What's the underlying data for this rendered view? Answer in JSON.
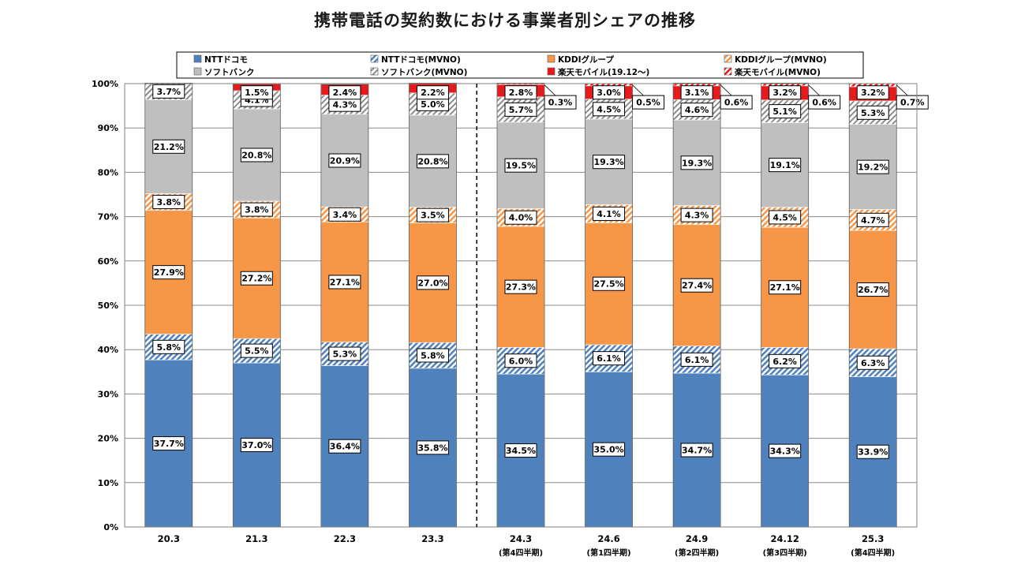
{
  "chart_data": {
    "type": "bar",
    "stacked": true,
    "title": "携帯電話の契約数における事業者別シェアの推移",
    "xlabel": "",
    "ylabel": "",
    "ylim": [
      0,
      100
    ],
    "y_ticks": [
      "0%",
      "10%",
      "20%",
      "30%",
      "40%",
      "50%",
      "60%",
      "70%",
      "80%",
      "90%",
      "100%"
    ],
    "grid": true,
    "legend_position": "top",
    "divider_after_category": "23.3",
    "categories": [
      "20.3",
      "21.3",
      "22.3",
      "23.3",
      "24.3",
      "24.6",
      "24.9",
      "24.12",
      "25.3"
    ],
    "category_sublabels": [
      "",
      "",
      "",
      "",
      "(第4四半期)",
      "(第1四半期)",
      "(第2四半期)",
      "(第3四半期)",
      "(第4四半期)"
    ],
    "series": [
      {
        "name": "NTTドコモ",
        "color": "#4f81bd",
        "pattern": "solid",
        "values": [
          37.7,
          37.0,
          36.4,
          35.8,
          34.5,
          35.0,
          34.7,
          34.3,
          33.9
        ],
        "labels": [
          "37.7%",
          "37.0%",
          "36.4%",
          "35.8%",
          "34.5%",
          "35.0%",
          "34.7%",
          "34.3%",
          "33.9%"
        ]
      },
      {
        "name": "NTTドコモ(MVNO)",
        "color": "#4f81bd",
        "pattern": "hatch",
        "values": [
          5.8,
          5.5,
          5.3,
          5.8,
          6.0,
          6.1,
          6.1,
          6.2,
          6.3
        ],
        "labels": [
          "5.8%",
          "5.5%",
          "5.3%",
          "5.8%",
          "6.0%",
          "6.1%",
          "6.1%",
          "6.2%",
          "6.3%"
        ]
      },
      {
        "name": "KDDIグループ",
        "color": "#f79646",
        "pattern": "solid",
        "values": [
          27.9,
          27.2,
          27.1,
          27.0,
          27.3,
          27.5,
          27.4,
          27.1,
          26.7
        ],
        "labels": [
          "27.9%",
          "27.2%",
          "27.1%",
          "27.0%",
          "27.3%",
          "27.5%",
          "27.4%",
          "27.1%",
          "26.7%"
        ]
      },
      {
        "name": "KDDIグループ(MVNO)",
        "color": "#f79646",
        "pattern": "hatch",
        "values": [
          3.8,
          3.8,
          3.4,
          3.5,
          4.0,
          4.1,
          4.3,
          4.5,
          4.7
        ],
        "labels": [
          "3.8%",
          "3.8%",
          "3.4%",
          "3.5%",
          "4.0%",
          "4.1%",
          "4.3%",
          "4.5%",
          "4.7%"
        ]
      },
      {
        "name": "ソフトバンク",
        "color": "#bfbfbf",
        "pattern": "solid",
        "values": [
          21.2,
          20.8,
          20.9,
          20.8,
          19.5,
          19.3,
          19.3,
          19.1,
          19.2
        ],
        "labels": [
          "21.2%",
          "20.8%",
          "20.9%",
          "20.8%",
          "19.5%",
          "19.3%",
          "19.3%",
          "19.1%",
          "19.2%"
        ]
      },
      {
        "name": "ソフトバンク(MVNO)",
        "color": "#a6a6a6",
        "pattern": "hatch",
        "values": [
          3.7,
          4.1,
          4.3,
          5.0,
          5.7,
          4.5,
          4.6,
          5.1,
          5.3
        ],
        "labels": [
          "3.7%",
          "4.1%",
          "4.3%",
          "5.0%",
          "5.7%",
          "4.5%",
          "4.6%",
          "5.1%",
          "5.3%"
        ]
      },
      {
        "name": "楽天モバイル(19.12～)",
        "color": "#e41a1c",
        "pattern": "solid",
        "values": [
          0,
          1.5,
          2.4,
          2.2,
          2.8,
          3.0,
          3.1,
          3.2,
          3.2
        ],
        "labels": [
          "",
          "1.5%",
          "2.4%",
          "2.2%",
          "2.8%",
          "3.0%",
          "3.1%",
          "3.2%",
          "3.2%"
        ]
      },
      {
        "name": "楽天モバイル(MVNO)",
        "color": "#e41a1c",
        "pattern": "hatch",
        "values": [
          0,
          0,
          0,
          0,
          0.3,
          0.5,
          0.6,
          0.6,
          0.7
        ],
        "labels": [
          "",
          "",
          "",
          "",
          "0.3%",
          "0.5%",
          "0.6%",
          "0.6%",
          "0.7%"
        ]
      }
    ]
  }
}
